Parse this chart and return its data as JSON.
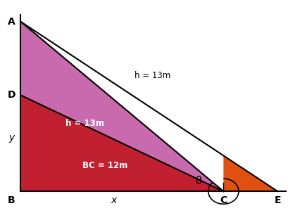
{
  "background_color": "#ffffff",
  "label_A": "A",
  "label_B": "B",
  "label_C": "C",
  "label_D": "D",
  "label_E": "E",
  "label_x": "x",
  "label_y": "y",
  "label_h13m_upper": "h = 13m",
  "label_h13m_lower": "h = 13m",
  "label_BC": "BC = 12m",
  "label_theta": "θ",
  "A": [
    0.0,
    12.0
  ],
  "B": [
    0.0,
    0.0
  ],
  "C": [
    12.0,
    0.0
  ],
  "E": [
    15.2,
    0.0
  ],
  "D": [
    0.0,
    6.8
  ],
  "Y": [
    0.0,
    3.8
  ],
  "X": [
    5.5,
    0.0
  ],
  "upper_color": "#c050a0",
  "lower_color": "#c02030",
  "small_color": "#e05010",
  "line_color": "#000000",
  "label_color_white": "#ffffff",
  "label_color_black": "#000000",
  "xlim": [
    -1.2,
    16.5
  ],
  "ylim": [
    -1.5,
    13.5
  ],
  "figsize": [
    4.26,
    3.03
  ],
  "dpi": 100
}
